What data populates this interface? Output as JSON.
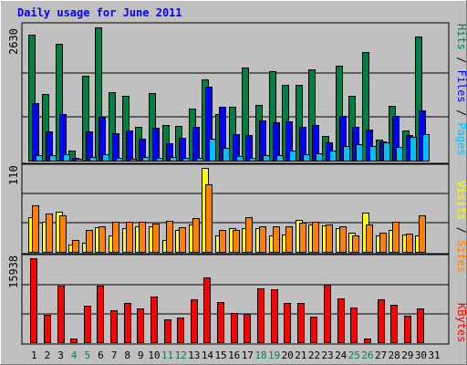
{
  "chart_data": {
    "type": "bar",
    "title": "Daily usage for June 2011",
    "categories": [
      "1",
      "2",
      "3",
      "4",
      "5",
      "6",
      "7",
      "8",
      "9",
      "10",
      "11",
      "12",
      "13",
      "14",
      "15",
      "16",
      "17",
      "18",
      "19",
      "20",
      "21",
      "22",
      "23",
      "24",
      "25",
      "26",
      "27",
      "28",
      "29",
      "30",
      "31"
    ],
    "weekend_days": [
      "4",
      "5",
      "11",
      "12",
      "18",
      "19",
      "25",
      "26"
    ],
    "panels": [
      {
        "id": "hits-files-pages",
        "ymax_label": "2630",
        "ymax": 2630,
        "series": [
          {
            "name": "Hits",
            "color": "#008040",
            "values": [
              2450,
              1300,
              2280,
              190,
              1660,
              2600,
              1330,
              1270,
              660,
              1310,
              700,
              680,
              1010,
              1580,
              910,
              1050,
              1810,
              1090,
              1740,
              1480,
              1480,
              1780,
              480,
              1850,
              1270,
              2120,
              400,
              1060,
              580,
              2410,
              0
            ]
          },
          {
            "name": "Files",
            "color": "#0000ff",
            "values": [
              1120,
              560,
              900,
              60,
              570,
              860,
              530,
              590,
              430,
              640,
              340,
              440,
              660,
              1440,
              1050,
              520,
              490,
              780,
              740,
              760,
              660,
              690,
              360,
              870,
              650,
              610,
              380,
              870,
              500,
              970,
              0
            ]
          },
          {
            "name": "Pages",
            "color": "#00c0ff",
            "values": [
              110,
              110,
              130,
              35,
              65,
              120,
              45,
              40,
              65,
              50,
              70,
              60,
              60,
              420,
              250,
              90,
              50,
              100,
              100,
              200,
              120,
              145,
              190,
              290,
              320,
              280,
              360,
              260,
              470,
              520,
              0
            ]
          }
        ]
      },
      {
        "id": "visits-sites",
        "ymax_label": "110",
        "ymax": 110,
        "series": [
          {
            "name": "Visits",
            "color": "#ffff00",
            "values": [
              46,
              40,
              53,
              9,
              12,
              32,
              21,
              31,
              33,
              34,
              16,
              29,
              36,
              110,
              21,
              31,
              31,
              31,
              22,
              23,
              42,
              36,
              35,
              31,
              25,
              51,
              22,
              29,
              23,
              21,
              0
            ]
          },
          {
            "name": "Sites",
            "color": "#ff8000",
            "values": [
              61,
              50,
              48,
              16,
              29,
              33,
              40,
              40,
              40,
              37,
              41,
              32,
              44,
              88,
              29,
              29,
              45,
              34,
              34,
              33,
              38,
              40,
              36,
              33,
              21,
              36,
              25,
              39,
              24,
              48,
              0
            ]
          }
        ]
      },
      {
        "id": "kbytes",
        "ymax_label": "15938",
        "ymax": 15938,
        "series": [
          {
            "name": "KBytes",
            "color": "#ff0000",
            "values": [
              15938,
              5200,
              10800,
              720,
              6900,
              10700,
              6000,
              7400,
              6400,
              8700,
              4400,
              4600,
              8200,
              12300,
              7700,
              5600,
              5400,
              10200,
              10000,
              7400,
              7400,
              4800,
              10900,
              8300,
              6600,
              650,
              8100,
              7100,
              5100,
              6400,
              0
            ]
          }
        ]
      }
    ],
    "right_labels": {
      "pages": "Pages",
      "files": "Files",
      "hits": "Hits",
      "visits": "Visits",
      "sites": "Sites",
      "kbytes": "KBytes",
      "separator": " / "
    },
    "colors": {
      "frame": "#c0c0c0",
      "plot_bg": "#c0c0c0",
      "title": "#0000ff",
      "weekday_tick": "#000000",
      "weekend_tick": "#00805c",
      "bar_outline": "#000000"
    }
  }
}
